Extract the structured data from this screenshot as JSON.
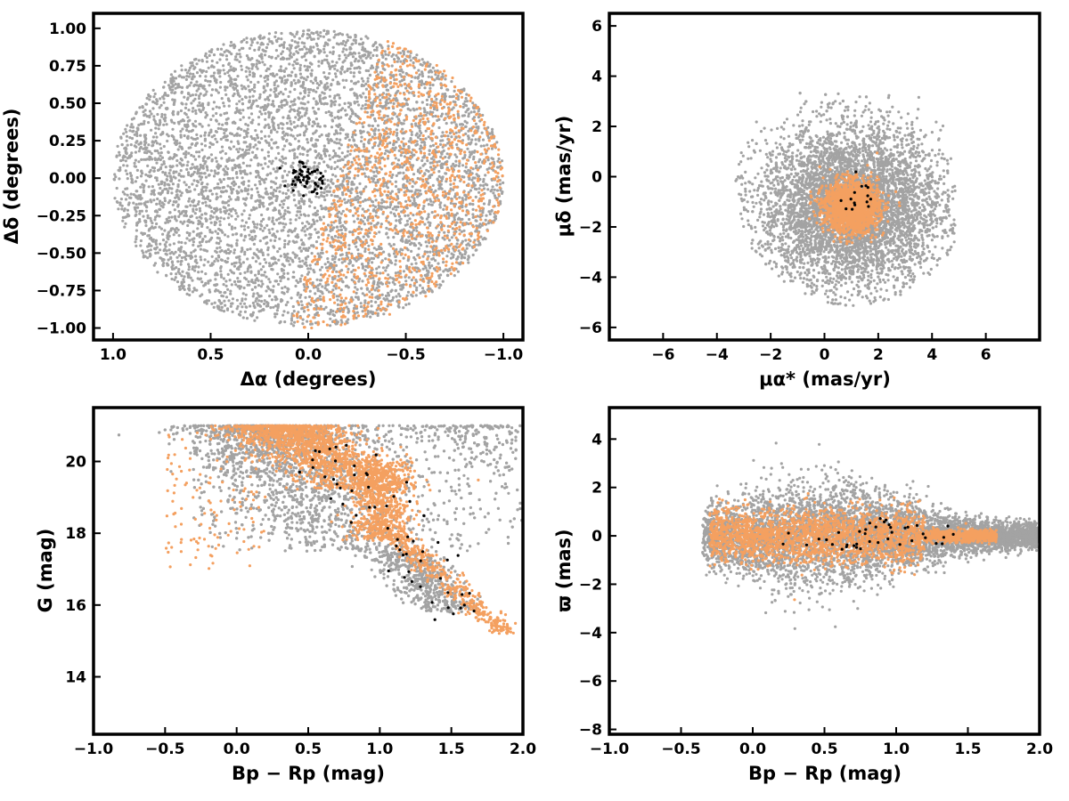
{
  "colors": {
    "field": "#a3a3a3",
    "members": "#f4a060",
    "core": "#000000"
  },
  "chart_data": [
    {
      "id": "sky",
      "type": "scatter",
      "xlabel": "Δα (degrees)",
      "ylabel": "Δδ (degrees)",
      "xlim": [
        1.1,
        -1.1
      ],
      "ylim": [
        -1.08,
        1.1
      ],
      "x_inverted": true,
      "xticks": [
        1.0,
        0.5,
        0.0,
        -0.5,
        -1.0
      ],
      "xtick_labels": [
        "1.0",
        "0.5",
        "0.0",
        "−0.5",
        "−1.0"
      ],
      "yticks": [
        1.0,
        0.75,
        0.5,
        0.25,
        0.0,
        -0.25,
        -0.5,
        -0.75,
        -1.0
      ],
      "ytick_labels": [
        "1.00",
        "0.75",
        "0.50",
        "0.25",
        "0.00",
        "−0.25",
        "−0.50",
        "−0.75",
        "−1.00"
      ],
      "grid": false,
      "series": [
        {
          "role": "field",
          "distribution": "disk",
          "center": [
            0.0,
            0.0
          ],
          "radius": 1.0,
          "approx_count": 9000
        },
        {
          "role": "members",
          "distribution": "western-half-of-disk",
          "x_range": [
            -1.0,
            -0.2
          ],
          "approx_count": 5000
        },
        {
          "role": "core",
          "center": [
            0.0,
            0.0
          ],
          "spread": 0.08,
          "approx_count": 60
        }
      ]
    },
    {
      "id": "proper-motion",
      "type": "scatter",
      "xlabel": "μα* (mas/yr)",
      "ylabel": "μδ (mas/yr)",
      "xlim": [
        -8,
        8
      ],
      "ylim": [
        -6.5,
        6.5
      ],
      "xticks": [
        -6,
        -4,
        -2,
        0,
        2,
        4,
        6
      ],
      "xtick_labels": [
        "−6",
        "−4",
        "−2",
        "0",
        "2",
        "4",
        "6"
      ],
      "yticks": [
        6,
        4,
        2,
        0,
        -2,
        -4,
        -6
      ],
      "ytick_labels": [
        "6",
        "4",
        "2",
        "0",
        "−2",
        "−4",
        "−6"
      ],
      "grid": false,
      "series": [
        {
          "role": "field",
          "center": [
            1.0,
            -1.2
          ],
          "spread": 1.8,
          "x_max": 5.0,
          "approx_count": 9000
        },
        {
          "role": "members",
          "center": [
            1.0,
            -1.2
          ],
          "spread": 0.55,
          "approx_count": 2500
        },
        {
          "role": "core",
          "center": [
            1.2,
            -0.8
          ],
          "spread": 0.3,
          "approx_count": 15
        }
      ]
    },
    {
      "id": "cmd",
      "type": "scatter",
      "xlabel": "Bp − Rp (mag)",
      "ylabel": "G (mag)",
      "xlim": [
        -1.0,
        2.0
      ],
      "ylim": [
        12.4,
        21.5
      ],
      "y_inverted": false,
      "xticks": [
        -1.0,
        -0.5,
        0.0,
        0.5,
        1.0,
        1.5,
        2.0
      ],
      "xtick_labels": [
        "−1.0",
        "−0.5",
        "0.0",
        "0.5",
        "1.0",
        "1.5",
        "2.0"
      ],
      "yticks": [
        20,
        18,
        16,
        14
      ],
      "ytick_labels": [
        "20",
        "18",
        "16",
        "14"
      ],
      "grid": false,
      "series": [
        {
          "role": "field",
          "approx_count": 9000
        },
        {
          "role": "members",
          "approx_count": 3500
        },
        {
          "role": "core",
          "approx_count": 60
        }
      ]
    },
    {
      "id": "parallax",
      "type": "scatter",
      "xlabel": "Bp − Rp (mag)",
      "ylabel": "ϖ (mas)",
      "xlim": [
        -1.0,
        2.0
      ],
      "ylim": [
        -8.2,
        5.3
      ],
      "xticks": [
        -1.0,
        -0.5,
        0.0,
        0.5,
        1.0,
        1.5,
        2.0
      ],
      "xtick_labels": [
        "−1.0",
        "−0.5",
        "0.0",
        "0.5",
        "1.0",
        "1.5",
        "2.0"
      ],
      "yticks": [
        4,
        2,
        0,
        -2,
        -4,
        -6,
        -8
      ],
      "ytick_labels": [
        "4",
        "2",
        "0",
        "−2",
        "−4",
        "−6",
        "−8"
      ],
      "grid": false,
      "series": [
        {
          "role": "field",
          "center": [
            0.85,
            0.0
          ],
          "approx_count": 9000
        },
        {
          "role": "members",
          "center": [
            0.9,
            0.0
          ],
          "approx_count": 3500
        },
        {
          "role": "core",
          "approx_count": 40
        }
      ]
    }
  ]
}
